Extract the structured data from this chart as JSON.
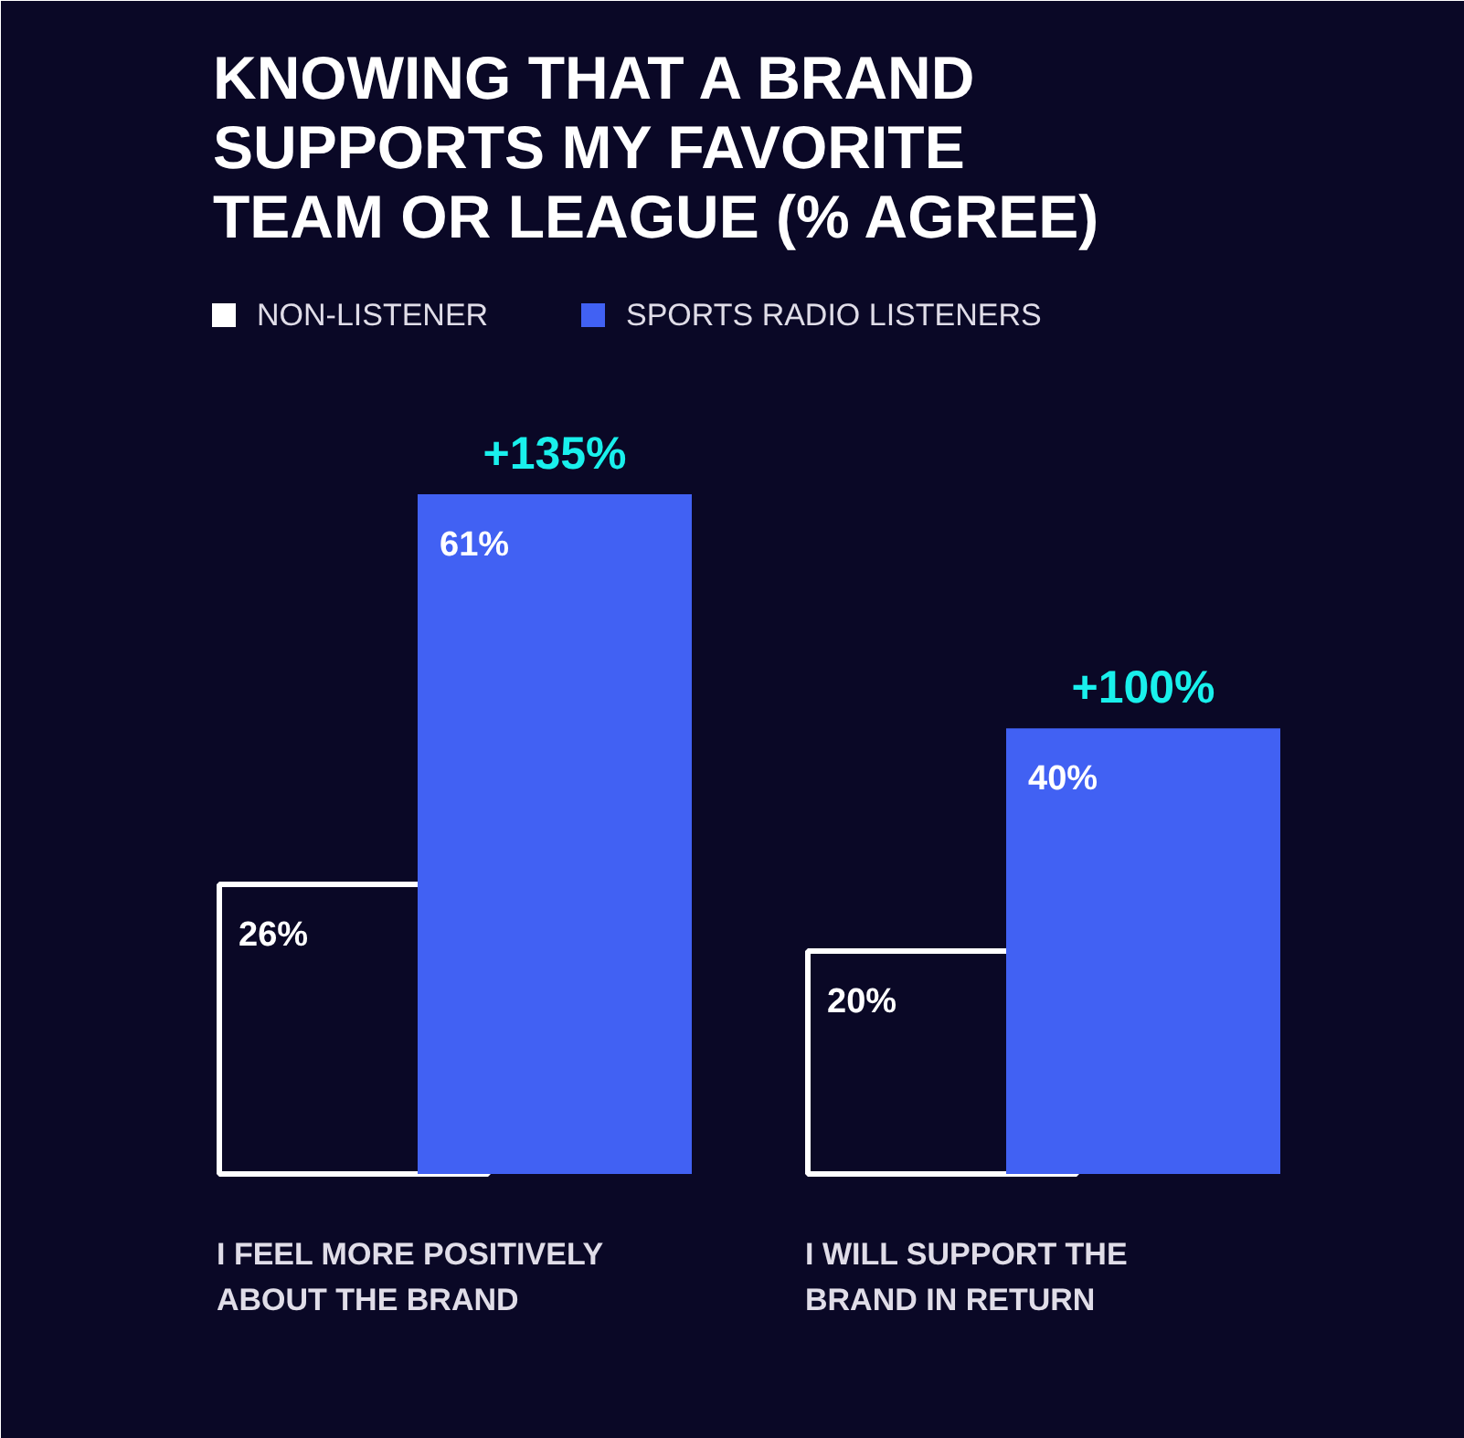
{
  "chart_data": {
    "type": "bar",
    "title": "KNOWING THAT A BRAND SUPPORTS MY FAVORITE TEAM OR LEAGUE (% AGREE)",
    "categories": [
      "I FEEL MORE POSITIVELY ABOUT THE BRAND",
      "I WILL SUPPORT THE BRAND IN RETURN"
    ],
    "series": [
      {
        "name": "NON-LISTENER",
        "color": "#ffffff",
        "values": [
          26,
          20
        ],
        "value_labels": [
          "26%",
          "20%"
        ]
      },
      {
        "name": "SPORTS RADIO LISTENERS",
        "color": "#4161f3",
        "values": [
          61,
          40
        ],
        "value_labels": [
          "61%",
          "40%"
        ]
      }
    ],
    "legend": "top left",
    "grid": false,
    "annotations": [
      "+135%",
      "+100%"
    ]
  }
}
